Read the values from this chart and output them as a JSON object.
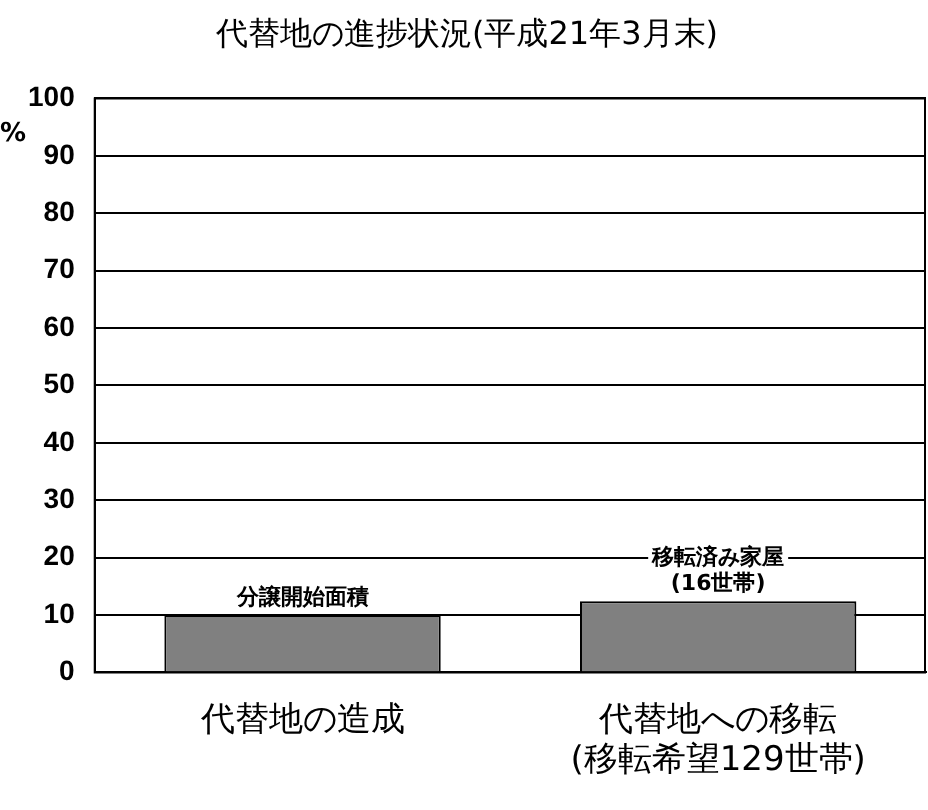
{
  "chart_data": {
    "type": "bar",
    "title": "代替地の進捗状況(平成21年3月末)",
    "ylabel": "%",
    "categories": [
      "代替地の造成",
      "代替地への移転\n(移転希望129世帯)"
    ],
    "values": [
      10,
      12.4
    ],
    "color": "#808080",
    "ylim": [
      0,
      100
    ],
    "yticks": [
      0,
      10,
      20,
      30,
      40,
      50,
      60,
      70,
      80,
      90,
      100
    ],
    "grid": "y",
    "legend": false,
    "annotations": [
      {
        "text": "分譲開始面積",
        "x": "代替地の造成",
        "y": 10
      },
      {
        "text": "移転済み家屋\n(16世帯)",
        "x": "代替地への移転\n(移転希望129世帯)",
        "y": 12.4
      }
    ]
  }
}
